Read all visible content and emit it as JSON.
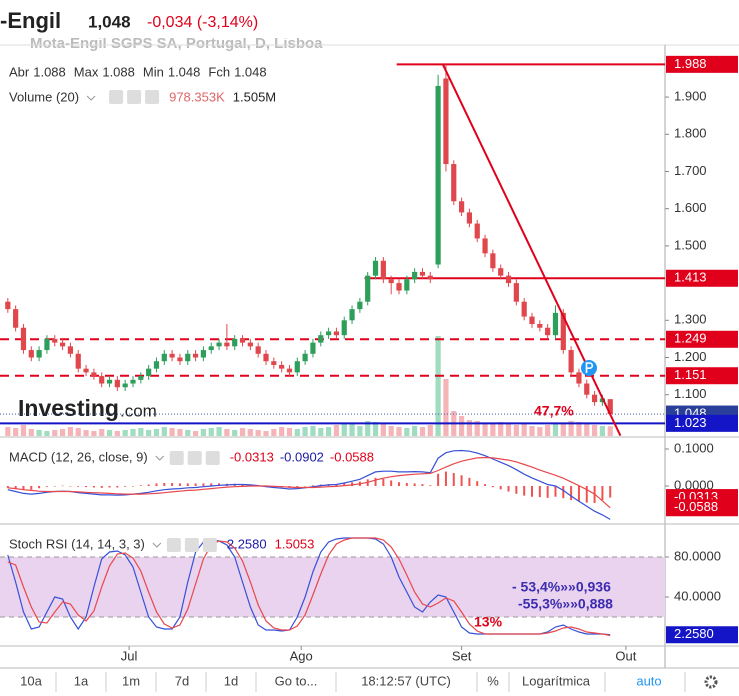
{
  "header": {
    "name": "-Engil",
    "price": "1,048",
    "change": "-0,034 (-3,14%)",
    "change_color": "#e0001b"
  },
  "chart_data": [
    {
      "type": "candlestick",
      "title": "Mota-Engil SGPS SA, Portugal, D, Lisboa",
      "legend": [
        {
          "label": "Abr",
          "value": 1.088
        },
        {
          "label": "Max",
          "value": 1.088
        },
        {
          "label": "Min",
          "value": 1.048
        },
        {
          "label": "Fch",
          "value": 1.048
        }
      ],
      "volume_title": "Volume (20)",
      "volume_legend": [
        {
          "value": 978353,
          "label": "978.353K",
          "color": "#e06666"
        },
        {
          "value": 1505000,
          "label": "1.505M",
          "color": "#222222"
        }
      ],
      "logo": "Investing",
      "logo_suffix": ".com",
      "up_color": "#2e9e5b",
      "down_color": "#e0474c",
      "volume_up_color": "#9fdcc0",
      "volume_down_color": "#f5b5b8",
      "x": [
        0,
        1,
        2,
        3,
        4,
        5,
        6,
        7,
        8,
        9,
        10,
        11,
        12,
        13,
        14,
        15,
        16,
        17,
        18,
        19,
        20,
        21,
        22,
        23,
        24,
        25,
        26,
        27,
        28,
        29,
        30,
        31,
        32,
        33,
        34,
        35,
        36,
        37,
        38,
        39,
        40,
        41,
        42,
        43,
        44,
        45,
        46,
        47,
        48,
        49,
        50,
        51,
        52,
        53,
        54,
        55,
        56,
        57,
        58,
        59,
        60,
        61,
        62,
        63,
        64,
        65,
        66,
        67,
        68,
        69,
        70,
        71,
        72,
        73,
        74,
        75,
        76,
        77
      ],
      "open": [
        1.35,
        1.33,
        1.28,
        1.22,
        1.2,
        1.22,
        1.25,
        1.24,
        1.23,
        1.21,
        1.17,
        1.16,
        1.15,
        1.13,
        1.14,
        1.12,
        1.13,
        1.14,
        1.15,
        1.17,
        1.19,
        1.21,
        1.2,
        1.19,
        1.21,
        1.2,
        1.22,
        1.23,
        1.24,
        1.23,
        1.25,
        1.24,
        1.23,
        1.21,
        1.19,
        1.18,
        1.17,
        1.16,
        1.19,
        1.21,
        1.24,
        1.26,
        1.27,
        1.26,
        1.3,
        1.33,
        1.35,
        1.42,
        1.46,
        1.41,
        1.4,
        1.38,
        1.41,
        1.43,
        1.42,
        1.45,
        1.95,
        1.72,
        1.62,
        1.59,
        1.56,
        1.52,
        1.48,
        1.44,
        1.42,
        1.4,
        1.35,
        1.31,
        1.29,
        1.28,
        1.26,
        1.32,
        1.22,
        1.16,
        1.13,
        1.1,
        1.08,
        1.088
      ],
      "high": [
        1.36,
        1.34,
        1.29,
        1.23,
        1.23,
        1.26,
        1.26,
        1.25,
        1.24,
        1.22,
        1.18,
        1.17,
        1.16,
        1.15,
        1.15,
        1.14,
        1.15,
        1.16,
        1.18,
        1.2,
        1.22,
        1.22,
        1.21,
        1.22,
        1.22,
        1.23,
        1.24,
        1.25,
        1.29,
        1.26,
        1.26,
        1.25,
        1.24,
        1.22,
        1.2,
        1.19,
        1.18,
        1.2,
        1.22,
        1.25,
        1.27,
        1.28,
        1.28,
        1.31,
        1.34,
        1.36,
        1.43,
        1.47,
        1.47,
        1.42,
        1.41,
        1.42,
        1.44,
        1.44,
        1.43,
        1.96,
        1.988,
        1.73,
        1.63,
        1.6,
        1.57,
        1.53,
        1.49,
        1.45,
        1.43,
        1.41,
        1.36,
        1.32,
        1.3,
        1.29,
        1.34,
        1.33,
        1.23,
        1.17,
        1.14,
        1.11,
        1.1,
        1.088
      ],
      "low": [
        1.32,
        1.27,
        1.21,
        1.19,
        1.19,
        1.21,
        1.23,
        1.22,
        1.2,
        1.16,
        1.15,
        1.14,
        1.12,
        1.12,
        1.11,
        1.11,
        1.12,
        1.13,
        1.14,
        1.16,
        1.18,
        1.19,
        1.18,
        1.18,
        1.19,
        1.19,
        1.21,
        1.22,
        1.22,
        1.22,
        1.23,
        1.22,
        1.2,
        1.18,
        1.17,
        1.16,
        1.15,
        1.15,
        1.18,
        1.2,
        1.23,
        1.25,
        1.25,
        1.25,
        1.29,
        1.32,
        1.34,
        1.41,
        1.4,
        1.37,
        1.37,
        1.37,
        1.4,
        1.41,
        1.4,
        1.44,
        1.7,
        1.61,
        1.58,
        1.55,
        1.51,
        1.47,
        1.43,
        1.41,
        1.39,
        1.34,
        1.3,
        1.28,
        1.27,
        1.25,
        1.25,
        1.21,
        1.15,
        1.12,
        1.09,
        1.07,
        1.07,
        1.048
      ],
      "close": [
        1.33,
        1.28,
        1.22,
        1.2,
        1.22,
        1.25,
        1.24,
        1.23,
        1.21,
        1.17,
        1.16,
        1.15,
        1.13,
        1.14,
        1.12,
        1.13,
        1.14,
        1.15,
        1.17,
        1.19,
        1.21,
        1.2,
        1.19,
        1.21,
        1.2,
        1.22,
        1.23,
        1.24,
        1.23,
        1.25,
        1.24,
        1.23,
        1.21,
        1.19,
        1.18,
        1.17,
        1.16,
        1.19,
        1.21,
        1.24,
        1.26,
        1.27,
        1.26,
        1.3,
        1.33,
        1.35,
        1.42,
        1.46,
        1.41,
        1.4,
        1.38,
        1.41,
        1.43,
        1.42,
        1.41,
        1.93,
        1.72,
        1.62,
        1.59,
        1.56,
        1.52,
        1.48,
        1.44,
        1.42,
        1.4,
        1.35,
        1.31,
        1.29,
        1.28,
        1.26,
        1.32,
        1.22,
        1.16,
        1.13,
        1.1,
        1.08,
        1.09,
        1.048
      ],
      "volume": [
        900000,
        800000,
        1100000,
        700000,
        600000,
        500000,
        600000,
        700000,
        900000,
        800000,
        600000,
        500000,
        700000,
        600000,
        500000,
        600000,
        700000,
        800000,
        600000,
        700000,
        900000,
        800000,
        700000,
        600000,
        500000,
        700000,
        800000,
        900000,
        700000,
        600000,
        800000,
        700000,
        600000,
        500000,
        700000,
        900000,
        800000,
        700000,
        900000,
        1000000,
        800000,
        900000,
        1100000,
        1200000,
        1300000,
        1000000,
        1500000,
        1400000,
        1300000,
        1000000,
        900000,
        800000,
        1000000,
        900000,
        1100000,
        10000000,
        5700000,
        2500000,
        2000000,
        1600000,
        1500000,
        1300000,
        1200000,
        1400000,
        1300000,
        1100000,
        1200000,
        1000000,
        900000,
        1100000,
        1300000,
        1200000,
        1500000,
        1400000,
        1200000,
        1100000,
        1000000,
        978353
      ],
      "volume_ylim": [
        0,
        12000000
      ],
      "xlim": [
        -1,
        84
      ],
      "xticks": [
        {
          "value": 15.5,
          "label": "Jul"
        },
        {
          "value": 37.5,
          "label": "Ago"
        },
        {
          "value": 58,
          "label": "Set"
        },
        {
          "value": 79,
          "label": "Out"
        }
      ],
      "ylim": [
        0.989,
        2.04
      ],
      "yticks": [
        {
          "value": 1.1,
          "label": "1.100"
        },
        {
          "value": 1.2,
          "label": "1.200"
        },
        {
          "value": 1.3,
          "label": "1.300"
        },
        {
          "value": 1.5,
          "label": "1.500"
        },
        {
          "value": 1.6,
          "label": "1.600"
        },
        {
          "value": 1.7,
          "label": "1.700"
        },
        {
          "value": 1.8,
          "label": "1.800"
        },
        {
          "value": 1.9,
          "label": "1.900"
        }
      ],
      "levels": [
        {
          "value": 1.988,
          "color": "#e0001b",
          "dash": false,
          "from": 49.7
        },
        {
          "value": 1.413,
          "color": "#e0001b",
          "dash": false,
          "from": 45.6
        },
        {
          "value": 1.249,
          "color": "#e0001b",
          "dash": true
        },
        {
          "value": 1.151,
          "color": "#e0001b",
          "dash": true
        },
        {
          "value": 1.048,
          "color": "#2a3f9a",
          "dash": true,
          "thin": true
        },
        {
          "value": 1.023,
          "color": "#1515c8",
          "dash": false
        }
      ],
      "trendline": {
        "x": [
          55.6,
          78.3
        ],
        "y": [
          1.988,
          0.99
        ],
        "color": "#e0001b"
      },
      "annotations": [
        {
          "text": "47,7%",
          "color": "#e0001b"
        }
      ]
    },
    {
      "type": "macd",
      "title": "MACD (12, 26, close, 9)",
      "legend_values": [
        {
          "value": -0.0313,
          "color": "#e0001b"
        },
        {
          "value": -0.0902,
          "color": "#1a1aa8"
        },
        {
          "value": -0.0588,
          "color": "#e0001b"
        }
      ],
      "series": [
        {
          "color": "#3650d8",
          "values": [
            -0.01,
            -0.015,
            -0.02,
            -0.022,
            -0.02,
            -0.017,
            -0.015,
            -0.014,
            -0.015,
            -0.018,
            -0.02,
            -0.022,
            -0.024,
            -0.024,
            -0.025,
            -0.024,
            -0.022,
            -0.02,
            -0.017,
            -0.013,
            -0.01,
            -0.008,
            -0.007,
            -0.005,
            -0.004,
            -0.002,
            0.0,
            0.002,
            0.003,
            0.004,
            0.004,
            0.003,
            0.001,
            -0.002,
            -0.004,
            -0.006,
            -0.008,
            -0.007,
            -0.005,
            -0.002,
            0.001,
            0.003,
            0.004,
            0.008,
            0.013,
            0.018,
            0.028,
            0.038,
            0.04,
            0.04,
            0.038,
            0.038,
            0.039,
            0.038,
            0.036,
            0.075,
            0.09,
            0.095,
            0.096,
            0.094,
            0.089,
            0.082,
            0.073,
            0.064,
            0.055,
            0.044,
            0.032,
            0.022,
            0.013,
            0.004,
            0.0,
            -0.012,
            -0.027,
            -0.041,
            -0.055,
            -0.068,
            -0.078,
            -0.0902
          ]
        },
        {
          "color": "#e8474c",
          "values": [
            -0.005,
            -0.007,
            -0.01,
            -0.012,
            -0.014,
            -0.015,
            -0.015,
            -0.015,
            -0.015,
            -0.016,
            -0.017,
            -0.018,
            -0.019,
            -0.02,
            -0.021,
            -0.022,
            -0.022,
            -0.022,
            -0.021,
            -0.02,
            -0.018,
            -0.016,
            -0.014,
            -0.012,
            -0.011,
            -0.009,
            -0.007,
            -0.005,
            -0.003,
            -0.002,
            -0.001,
            0.0,
            0.0,
            0.0,
            -0.001,
            -0.002,
            -0.003,
            -0.004,
            -0.004,
            -0.004,
            -0.003,
            -0.002,
            -0.001,
            0.001,
            0.003,
            0.006,
            0.01,
            0.016,
            0.021,
            0.025,
            0.028,
            0.03,
            0.032,
            0.033,
            0.034,
            0.042,
            0.051,
            0.06,
            0.067,
            0.072,
            0.076,
            0.077,
            0.076,
            0.073,
            0.07,
            0.065,
            0.058,
            0.051,
            0.043,
            0.036,
            0.029,
            0.021,
            0.011,
            0.001,
            -0.01,
            -0.022,
            -0.04,
            -0.0588
          ]
        }
      ],
      "histogram": {
        "color": "#ef5350",
        "values": [
          -0.005,
          -0.008,
          -0.01,
          -0.01,
          -0.006,
          -0.002,
          0.0,
          0.001,
          0.0,
          -0.002,
          -0.003,
          -0.004,
          -0.005,
          -0.004,
          -0.004,
          -0.002,
          0.0,
          0.002,
          0.004,
          0.007,
          0.008,
          0.008,
          0.007,
          0.007,
          0.007,
          0.007,
          0.007,
          0.007,
          0.006,
          0.006,
          0.005,
          0.003,
          0.001,
          -0.002,
          -0.003,
          -0.004,
          -0.005,
          -0.003,
          -0.001,
          0.002,
          0.004,
          0.005,
          0.005,
          0.007,
          0.01,
          0.012,
          0.018,
          0.022,
          0.019,
          0.015,
          0.01,
          0.008,
          0.007,
          0.005,
          0.002,
          0.033,
          0.039,
          0.035,
          0.029,
          0.022,
          0.013,
          0.005,
          -0.003,
          -0.009,
          -0.015,
          -0.021,
          -0.026,
          -0.029,
          -0.03,
          -0.032,
          -0.029,
          -0.033,
          -0.038,
          -0.042,
          -0.045,
          -0.046,
          -0.038,
          -0.0313
        ]
      },
      "ylim": [
        -0.0973,
        0.1243
      ],
      "yticks": [
        {
          "value": 0.1,
          "label": "0.1000"
        },
        {
          "value": 0,
          "label": "0.0000"
        }
      ],
      "last_labels": [
        {
          "value": -0.0313,
          "color": "#e0001b"
        },
        {
          "value": -0.0588,
          "color": "#e0001b"
        }
      ]
    },
    {
      "type": "stoch",
      "title": "Stoch RSI (14, 14, 3, 3)",
      "legend_values": [
        {
          "value": 2.258,
          "label": "2.2580",
          "color": "#1a1aa8"
        },
        {
          "value": 1.5053,
          "color": "#e0001b"
        }
      ],
      "series": [
        {
          "color": "#3650d8",
          "values": [
            82,
            55,
            25,
            8,
            10,
            25,
            40,
            38,
            20,
            8,
            20,
            50,
            78,
            85,
            86,
            82,
            70,
            45,
            20,
            10,
            8,
            8,
            20,
            55,
            85,
            95,
            97,
            96,
            92,
            80,
            55,
            30,
            12,
            7,
            7,
            6,
            7,
            20,
            40,
            65,
            85,
            95,
            98,
            99,
            99,
            99,
            99,
            98,
            93,
            80,
            60,
            45,
            30,
            25,
            35,
            42,
            40,
            25,
            10,
            4,
            3,
            3,
            3,
            3,
            3,
            3,
            3,
            3,
            3,
            5,
            10,
            12,
            8,
            5,
            3,
            3,
            3,
            2.258
          ]
        },
        {
          "color": "#e8474c",
          "values": [
            75,
            72,
            50,
            30,
            15,
            14,
            25,
            35,
            33,
            22,
            16,
            26,
            50,
            71,
            83,
            84,
            79,
            66,
            45,
            25,
            13,
            9,
            12,
            28,
            53,
            78,
            92,
            96,
            95,
            89,
            76,
            55,
            32,
            16,
            9,
            7,
            7,
            11,
            22,
            42,
            63,
            82,
            93,
            97,
            99,
            99,
            99,
            99,
            97,
            90,
            78,
            62,
            45,
            33,
            30,
            34,
            39,
            36,
            25,
            13,
            6,
            3,
            3,
            3,
            3,
            3,
            3,
            3,
            3,
            4,
            6,
            9,
            10,
            8,
            5,
            4,
            3,
            1.5053
          ]
        }
      ],
      "band": [
        20,
        80
      ],
      "band_color": "#ead3ee",
      "ylim": [
        -8,
        110
      ],
      "yticks": [
        {
          "value": 80,
          "label": "80.0000"
        },
        {
          "value": 40,
          "label": "40.0000"
        }
      ],
      "last_labels": [
        {
          "value": 2.258,
          "label": "2.2580",
          "color": "#1515c8"
        }
      ],
      "annotations": [
        {
          "text": "- 53,4%»»0,936",
          "color": "#3a2cb0"
        },
        {
          "text": "-55,3%»»0,888",
          "color": "#3a2cb0"
        },
        {
          "text": "13%",
          "color": "#e0001b"
        }
      ]
    }
  ],
  "toolbar": [
    "10a",
    "1a",
    "1m",
    "7d",
    "1d",
    "Go to...",
    "18:12:57 (UTC)",
    "%",
    "Logarítmica",
    "auto"
  ]
}
